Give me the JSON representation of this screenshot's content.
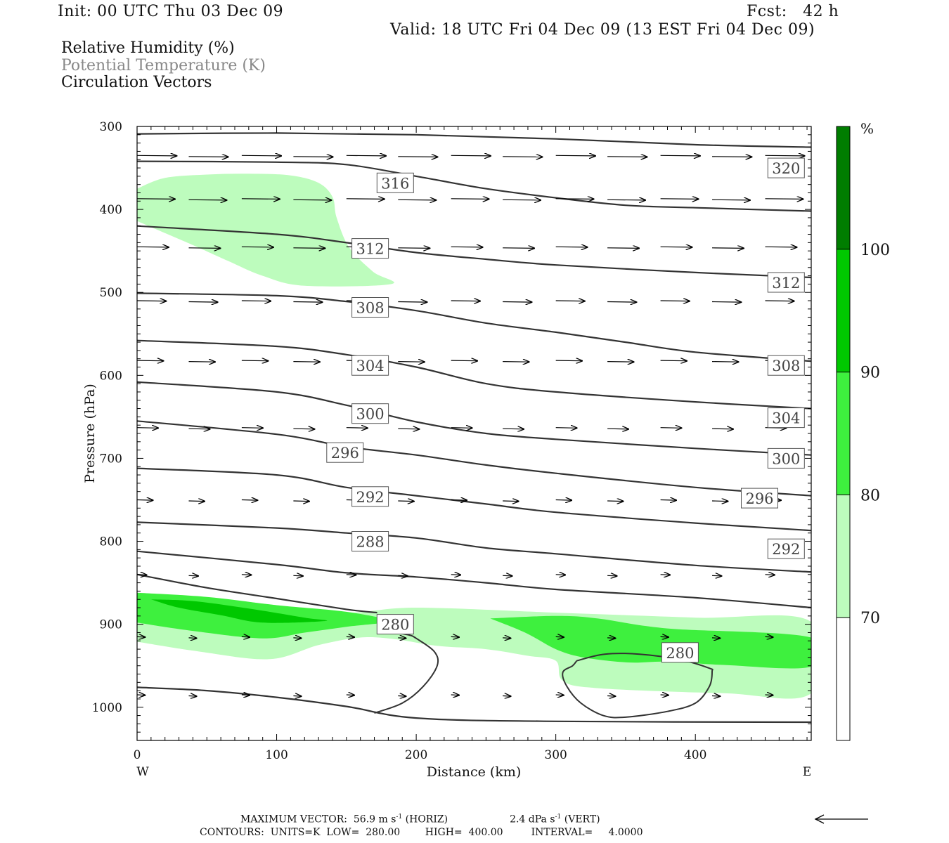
{
  "header": {
    "init": "Init: 00 UTC Thu 03 Dec 09",
    "fcst": "Fcst:   42 h",
    "valid": "Valid: 18 UTC Fri 04 Dec 09 (13 EST Fri 04 Dec 09)"
  },
  "legend": {
    "rh": "Relative Humidity (%)",
    "theta": "Potential Temperature (K)",
    "vectors": "Circulation Vectors"
  },
  "colors": {
    "rh70": "#bdfcbd",
    "rh80": "#3ef03e",
    "rh90": "#00c800",
    "rh100": "#007d00",
    "theta_line": "#333333",
    "theta_legend_text": "#888888"
  },
  "footer": {
    "max_vector": "MAXIMUM VECTOR:  56.9 m s",
    "max_vector_horiz": " (HORIZ)",
    "max_vector_vert_value": "2.4 dPa s",
    "max_vector_vert": " (VERT)",
    "exp": "-1",
    "contours": "CONTOURS:  UNITS=K  LOW=  280.00        HIGH=  400.00         INTERVAL=     4.0000"
  },
  "chart_data": {
    "type": "contour cross-section",
    "xlabel": "Distance (km)",
    "ylabel": "Pressure (hPa)",
    "x_ticks": [
      "0",
      "100",
      "200",
      "300",
      "400"
    ],
    "x_end_labels": {
      "left": "W",
      "right": "E"
    },
    "xlim": [
      0,
      483
    ],
    "y_ticks": [
      "300",
      "400",
      "500",
      "600",
      "700",
      "800",
      "900",
      "1000"
    ],
    "ylim": [
      300,
      1040
    ],
    "y_reversed": true,
    "colorbar": {
      "unit": "%",
      "levels": [
        "70",
        "80",
        "90",
        "100"
      ],
      "colors": [
        "#bdfcbd",
        "#3ef03e",
        "#00c800",
        "#007d00"
      ]
    },
    "theta_contour_labels": [
      {
        "text": "316",
        "x": 185,
        "p": 368
      },
      {
        "text": "320",
        "x": 465,
        "p": 350
      },
      {
        "text": "312",
        "x": 167,
        "p": 447
      },
      {
        "text": "312",
        "x": 465,
        "p": 488
      },
      {
        "text": "308",
        "x": 167,
        "p": 518
      },
      {
        "text": "308",
        "x": 465,
        "p": 588
      },
      {
        "text": "304",
        "x": 167,
        "p": 588
      },
      {
        "text": "304",
        "x": 465,
        "p": 651
      },
      {
        "text": "300",
        "x": 167,
        "p": 646
      },
      {
        "text": "300",
        "x": 465,
        "p": 700
      },
      {
        "text": "296",
        "x": 149,
        "p": 693
      },
      {
        "text": "296",
        "x": 446,
        "p": 748
      },
      {
        "text": "292",
        "x": 167,
        "p": 746
      },
      {
        "text": "292",
        "x": 465,
        "p": 809
      },
      {
        "text": "288",
        "x": 167,
        "p": 800
      },
      {
        "text": "280",
        "x": 185,
        "p": 900
      },
      {
        "text": "280",
        "x": 389,
        "p": 934
      }
    ],
    "theta_lines": [
      [
        [
          0,
          309
        ],
        [
          100,
          308
        ],
        [
          200,
          310
        ],
        [
          300,
          315
        ],
        [
          400,
          322
        ],
        [
          483,
          325
        ]
      ],
      [
        [
          0,
          342
        ],
        [
          100,
          343
        ],
        [
          150,
          346
        ],
        [
          200,
          360
        ],
        [
          250,
          375
        ],
        [
          300,
          386
        ],
        [
          350,
          395
        ],
        [
          400,
          398
        ],
        [
          483,
          402
        ]
      ],
      [
        [
          0,
          420
        ],
        [
          100,
          430
        ],
        [
          150,
          440
        ],
        [
          200,
          452
        ],
        [
          250,
          460
        ],
        [
          300,
          467
        ],
        [
          400,
          476
        ],
        [
          483,
          482
        ]
      ],
      [
        [
          0,
          501
        ],
        [
          100,
          504
        ],
        [
          150,
          511
        ],
        [
          200,
          522
        ],
        [
          250,
          537
        ],
        [
          300,
          548
        ],
        [
          350,
          560
        ],
        [
          400,
          572
        ],
        [
          483,
          583
        ]
      ],
      [
        [
          0,
          558
        ],
        [
          100,
          565
        ],
        [
          150,
          575
        ],
        [
          200,
          590
        ],
        [
          250,
          610
        ],
        [
          300,
          620
        ],
        [
          400,
          632
        ],
        [
          483,
          640
        ]
      ],
      [
        [
          0,
          608
        ],
        [
          100,
          620
        ],
        [
          150,
          636
        ],
        [
          200,
          656
        ],
        [
          250,
          670
        ],
        [
          300,
          677
        ],
        [
          400,
          688
        ],
        [
          483,
          696
        ]
      ],
      [
        [
          0,
          655
        ],
        [
          100,
          671
        ],
        [
          150,
          686
        ],
        [
          200,
          696
        ],
        [
          250,
          708
        ],
        [
          300,
          718
        ],
        [
          400,
          735
        ],
        [
          483,
          745
        ]
      ],
      [
        [
          0,
          712
        ],
        [
          100,
          720
        ],
        [
          150,
          735
        ],
        [
          200,
          745
        ],
        [
          250,
          755
        ],
        [
          300,
          765
        ],
        [
          400,
          778
        ],
        [
          483,
          787
        ]
      ],
      [
        [
          0,
          777
        ],
        [
          100,
          784
        ],
        [
          150,
          790
        ],
        [
          200,
          796
        ],
        [
          250,
          808
        ],
        [
          300,
          815
        ],
        [
          400,
          829
        ],
        [
          483,
          837
        ]
      ],
      [
        [
          0,
          812
        ],
        [
          100,
          828
        ],
        [
          150,
          838
        ],
        [
          200,
          843
        ],
        [
          250,
          850
        ],
        [
          300,
          858
        ],
        [
          400,
          868
        ],
        [
          483,
          880
        ]
      ],
      [
        [
          0,
          840
        ],
        [
          50,
          856
        ],
        [
          100,
          869
        ],
        [
          150,
          882
        ],
        [
          172,
          886
        ]
      ],
      [
        [
          0,
          976
        ],
        [
          50,
          980
        ],
        [
          100,
          988
        ],
        [
          150,
          999
        ],
        [
          200,
          1013
        ],
        [
          300,
          1017
        ],
        [
          483,
          1018
        ]
      ]
    ],
    "theta_280_loops": [
      [
        [
          170,
          1007
        ],
        [
          190,
          995
        ],
        [
          205,
          975
        ],
        [
          215,
          950
        ],
        [
          213,
          933
        ],
        [
          200,
          917
        ],
        [
          195,
          913
        ],
        [
          185,
          910
        ]
      ],
      [
        [
          315,
          944
        ],
        [
          335,
          936
        ],
        [
          360,
          936
        ],
        [
          390,
          943
        ],
        [
          410,
          953
        ],
        [
          412,
          957
        ],
        [
          410,
          975
        ],
        [
          400,
          995
        ],
        [
          380,
          1005
        ],
        [
          350,
          1012
        ],
        [
          334,
          1010
        ],
        [
          318,
          995
        ],
        [
          308,
          975
        ],
        [
          305,
          958
        ],
        [
          312,
          950
        ],
        [
          315,
          944
        ]
      ]
    ],
    "rh_70_regions": [
      [
        [
          0,
          375
        ],
        [
          20,
          362
        ],
        [
          50,
          358
        ],
        [
          80,
          357
        ],
        [
          110,
          359
        ],
        [
          130,
          368
        ],
        [
          140,
          385
        ],
        [
          143,
          410
        ],
        [
          152,
          446
        ],
        [
          169,
          475
        ],
        [
          182,
          490
        ],
        [
          120,
          492
        ],
        [
          90,
          480
        ],
        [
          65,
          462
        ],
        [
          40,
          443
        ],
        [
          0,
          414
        ]
      ],
      [
        [
          0,
          864
        ],
        [
          50,
          868
        ],
        [
          100,
          877
        ],
        [
          150,
          886
        ],
        [
          200,
          880
        ],
        [
          300,
          886
        ],
        [
          400,
          892
        ],
        [
          483,
          897
        ],
        [
          483,
          983
        ],
        [
          420,
          983
        ],
        [
          330,
          977
        ],
        [
          305,
          968
        ],
        [
          300,
          944
        ],
        [
          280,
          938
        ],
        [
          250,
          930
        ],
        [
          215,
          926
        ],
        [
          185,
          918
        ],
        [
          160,
          916
        ],
        [
          130,
          925
        ],
        [
          95,
          942
        ],
        [
          45,
          933
        ],
        [
          0,
          921
        ]
      ]
    ],
    "rh_80_regions": [
      [
        [
          0,
          862
        ],
        [
          50,
          867
        ],
        [
          100,
          877
        ],
        [
          150,
          885
        ],
        [
          180,
          896
        ],
        [
          150,
          903
        ],
        [
          120,
          910
        ],
        [
          90,
          917
        ],
        [
          40,
          908
        ],
        [
          0,
          898
        ]
      ],
      [
        [
          253,
          893
        ],
        [
          300,
          890
        ],
        [
          330,
          893
        ],
        [
          380,
          905
        ],
        [
          483,
          916
        ],
        [
          483,
          951
        ],
        [
          420,
          949
        ],
        [
          380,
          945
        ],
        [
          352,
          946
        ],
        [
          320,
          940
        ],
        [
          300,
          930
        ],
        [
          278,
          910
        ],
        [
          253,
          893
        ]
      ]
    ],
    "rh_90_regions": [
      [
        [
          10,
          870
        ],
        [
          40,
          872
        ],
        [
          80,
          881
        ],
        [
          120,
          892
        ],
        [
          135,
          896
        ],
        [
          90,
          898
        ],
        [
          60,
          889
        ],
        [
          30,
          880
        ],
        [
          10,
          870
        ]
      ]
    ],
    "vector_rows": [
      {
        "p": 335,
        "xs": [
          0,
          37,
          75,
          112,
          150,
          187,
          225,
          262,
          300,
          337,
          375,
          412,
          450
        ],
        "len": 0.75
      },
      {
        "p": 387,
        "xs": [
          0,
          37,
          75,
          112,
          150,
          187,
          225,
          262,
          300,
          337,
          375,
          412,
          450
        ],
        "len": 0.72
      },
      {
        "p": 445,
        "xs": [
          0,
          37,
          75,
          112,
          150,
          187,
          225,
          262,
          300,
          337,
          375,
          412,
          450
        ],
        "len": 0.6
      },
      {
        "p": 510,
        "xs": [
          0,
          37,
          75,
          112,
          150,
          187,
          225,
          262,
          300,
          337,
          375,
          412,
          450
        ],
        "len": 0.55
      },
      {
        "p": 582,
        "xs": [
          0,
          37,
          75,
          112,
          150,
          187,
          225,
          262,
          300,
          337,
          375,
          412,
          450
        ],
        "len": 0.5
      },
      {
        "p": 663,
        "xs": [
          0,
          37,
          75,
          112,
          150,
          187,
          225,
          262,
          300,
          337,
          375,
          412,
          450
        ],
        "len": 0.4
      },
      {
        "p": 750,
        "xs": [
          0,
          37,
          75,
          112,
          150,
          187,
          225,
          262,
          300,
          337,
          375,
          412,
          450
        ],
        "len": 0.3
      },
      {
        "p": 840,
        "xs": [
          0,
          37,
          75,
          112,
          150,
          187,
          225,
          262,
          300,
          337,
          375,
          412,
          450
        ],
        "len": 0.18
      },
      {
        "p": 915,
        "xs": [
          0,
          37,
          75,
          112,
          150,
          187,
          225,
          262,
          300,
          337,
          375,
          412,
          450
        ],
        "len": 0.15
      },
      {
        "p": 985,
        "xs": [
          0,
          37,
          75,
          112,
          150,
          187,
          225,
          262,
          300,
          337,
          375,
          412,
          450
        ],
        "len": 0.15
      }
    ]
  }
}
